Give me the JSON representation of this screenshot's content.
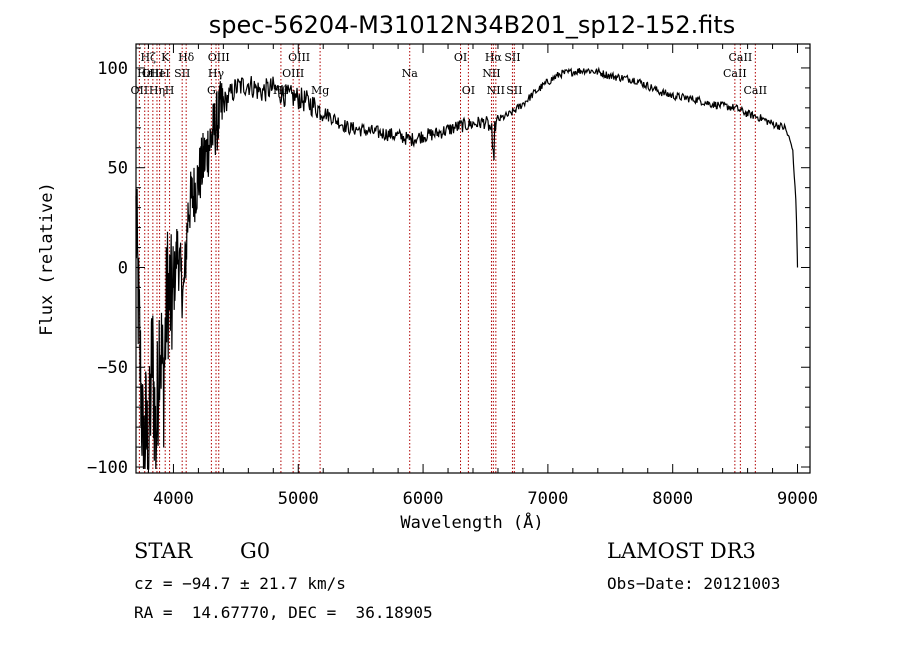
{
  "chart_data": {
    "type": "line",
    "title": "spec-56204-M31012N34B201_sp12-152.fits",
    "xlabel": "Wavelength (Å)",
    "ylabel": "Flux (relative)",
    "xlim": [
      3700,
      9100
    ],
    "ylim": [
      -103,
      112
    ],
    "xticks": [
      4000,
      5000,
      6000,
      7000,
      8000,
      9000
    ],
    "yticks": [
      -100,
      -50,
      0,
      50,
      100
    ],
    "grid": false,
    "series": [
      {
        "name": "flux",
        "anchors": [
          [
            3700,
            25
          ],
          [
            3720,
            -20
          ],
          [
            3740,
            -60
          ],
          [
            3760,
            -95
          ],
          [
            3780,
            -80
          ],
          [
            3800,
            -98
          ],
          [
            3830,
            -40
          ],
          [
            3860,
            -90
          ],
          [
            3890,
            -30
          ],
          [
            3920,
            -60
          ],
          [
            3950,
            -10
          ],
          [
            3990,
            -20
          ],
          [
            4030,
            10
          ],
          [
            4080,
            -15
          ],
          [
            4120,
            30
          ],
          [
            4180,
            40
          ],
          [
            4250,
            55
          ],
          [
            4330,
            70
          ],
          [
            4400,
            82
          ],
          [
            4500,
            90
          ],
          [
            4600,
            92
          ],
          [
            4700,
            88
          ],
          [
            4800,
            90
          ],
          [
            4900,
            86
          ],
          [
            5000,
            85
          ],
          [
            5100,
            82
          ],
          [
            5200,
            78
          ],
          [
            5300,
            74
          ],
          [
            5400,
            70
          ],
          [
            5500,
            69
          ],
          [
            5600,
            68
          ],
          [
            5700,
            67
          ],
          [
            5800,
            66
          ],
          [
            5900,
            64
          ],
          [
            6000,
            66
          ],
          [
            6100,
            67
          ],
          [
            6200,
            69
          ],
          [
            6300,
            71
          ],
          [
            6400,
            72
          ],
          [
            6500,
            73
          ],
          [
            6560,
            68
          ],
          [
            6600,
            74
          ],
          [
            6700,
            77
          ],
          [
            6800,
            82
          ],
          [
            6900,
            88
          ],
          [
            7000,
            93
          ],
          [
            7100,
            97
          ],
          [
            7200,
            98
          ],
          [
            7300,
            99
          ],
          [
            7400,
            98
          ],
          [
            7500,
            96
          ],
          [
            7600,
            95
          ],
          [
            7700,
            94
          ],
          [
            7800,
            91
          ],
          [
            7900,
            88
          ],
          [
            8000,
            86
          ],
          [
            8100,
            85
          ],
          [
            8200,
            84
          ],
          [
            8300,
            82
          ],
          [
            8400,
            81
          ],
          [
            8500,
            80
          ],
          [
            8600,
            77
          ],
          [
            8700,
            75
          ],
          [
            8800,
            72
          ],
          [
            8900,
            70
          ],
          [
            8960,
            60
          ],
          [
            8990,
            30
          ],
          [
            9000,
            0
          ]
        ]
      }
    ],
    "spectral_lines": [
      {
        "name": "OII",
        "wavelength": 3727,
        "row": 3
      },
      {
        "name": "Hε",
        "wavelength": 3770,
        "row": 2
      },
      {
        "name": "Hζ",
        "wavelength": 3798,
        "row": 1
      },
      {
        "name": "OIII",
        "wavelength": 3835,
        "row": 2
      },
      {
        "name": "Hη",
        "wavelength": 3868,
        "row": 3
      },
      {
        "name": "K",
        "wavelength": 3934,
        "row": 1
      },
      {
        "name": "H",
        "wavelength": 3969,
        "row": 3
      },
      {
        "name": "HeI",
        "wavelength": 3889,
        "row": 2
      },
      {
        "name": "SII",
        "wavelength": 4070,
        "row": 2
      },
      {
        "name": "Hδ",
        "wavelength": 4102,
        "row": 1
      },
      {
        "name": "G",
        "wavelength": 4304,
        "row": 3
      },
      {
        "name": "Hγ",
        "wavelength": 4341,
        "row": 2
      },
      {
        "name": "OIII",
        "wavelength": 4363,
        "row": 1
      },
      {
        "name": "Hβ",
        "wavelength": 4861,
        "row": 3
      },
      {
        "name": "OIII",
        "wavelength": 4959,
        "row": 2
      },
      {
        "name": "OIII",
        "wavelength": 5007,
        "row": 1
      },
      {
        "name": "Mg",
        "wavelength": 5175,
        "row": 3
      },
      {
        "name": "Na",
        "wavelength": 5893,
        "row": 2
      },
      {
        "name": "OI",
        "wavelength": 6300,
        "row": 1
      },
      {
        "name": "OI",
        "wavelength": 6363,
        "row": 3
      },
      {
        "name": "NII",
        "wavelength": 6548,
        "row": 2
      },
      {
        "name": "Hα",
        "wavelength": 6563,
        "row": 1
      },
      {
        "name": "NII",
        "wavelength": 6583,
        "row": 3
      },
      {
        "name": "SII",
        "wavelength": 6716,
        "row": 1
      },
      {
        "name": "SII",
        "wavelength": 6731,
        "row": 3
      },
      {
        "name": "CaII",
        "wavelength": 8498,
        "row": 2
      },
      {
        "name": "CaII",
        "wavelength": 8542,
        "row": 1
      },
      {
        "name": "CaII",
        "wavelength": 8662,
        "row": 3
      }
    ]
  },
  "info": {
    "class": "STAR",
    "subclass": "G0",
    "survey": "LAMOST DR3",
    "cz": "cz = −94.7 ± 21.7 km/s",
    "obs_date": "Obs−Date: 20121003",
    "radec": "RA =  14.67770, DEC =  36.18905"
  }
}
